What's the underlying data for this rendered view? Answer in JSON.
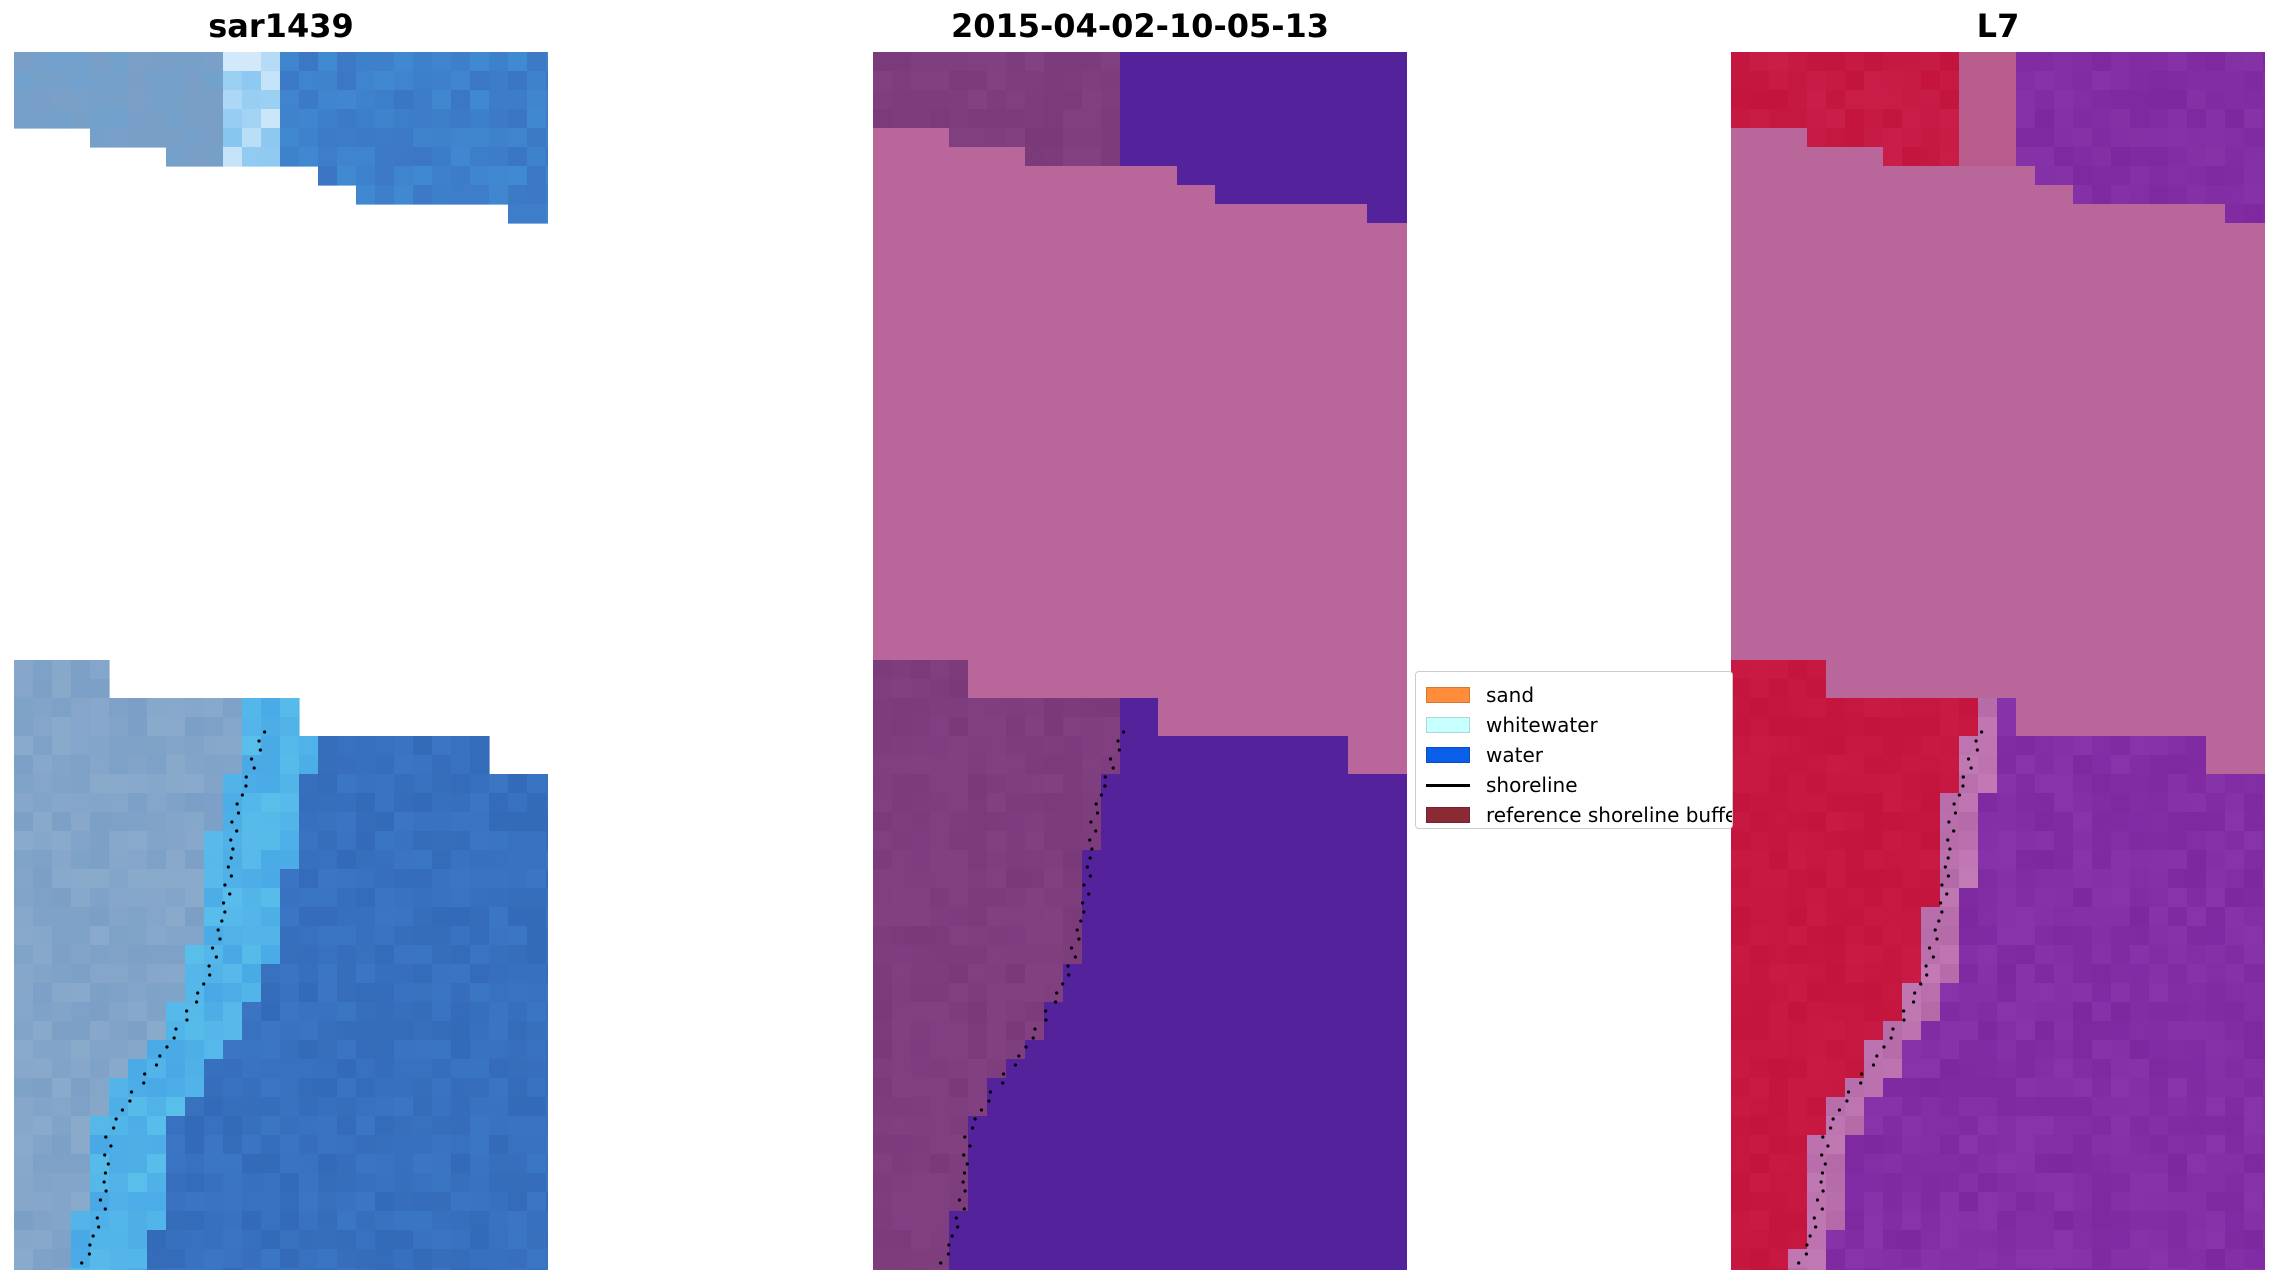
{
  "panels": [
    {
      "id": "rgb",
      "title": "sar1439"
    },
    {
      "id": "classified",
      "title": "2015-04-02-10-05-13"
    },
    {
      "id": "index",
      "title": "L7"
    }
  ],
  "legend": {
    "items": [
      {
        "label": "sand",
        "color": "#ff8c3a",
        "kind": "patch"
      },
      {
        "label": "whitewater",
        "color": "#c8ffff",
        "kind": "patch"
      },
      {
        "label": "water",
        "color": "#0a5fe8",
        "kind": "patch"
      },
      {
        "label": "shoreline",
        "color": "#000000",
        "kind": "line"
      },
      {
        "label": "reference shoreline buffer",
        "color": "#8b2a35",
        "kind": "patch"
      }
    ]
  },
  "colors": {
    "cloud_mask": "#b9669a",
    "rgb_land": "#7b9fc6",
    "rgb_water": "#3b76c4",
    "rgb_surf": "#49a9e6",
    "rgb_white": "#f2f8ff",
    "class_land": "#7a3a7a",
    "class_water": "#54229a",
    "index_land": "#c2143c",
    "index_water": "#7e28a0"
  },
  "icons": {
    "shoreline_marker": "shoreline-point-icon"
  }
}
